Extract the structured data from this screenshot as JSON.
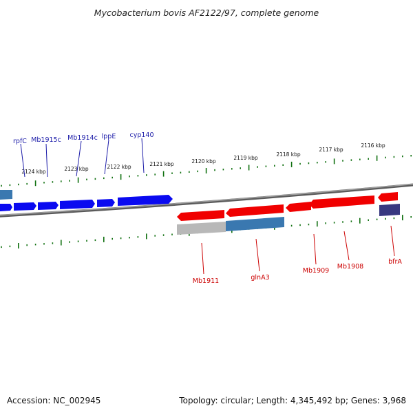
{
  "title": "Mycobacterium bovis AF2122/97, complete genome",
  "footer": {
    "accession": "Accession: NC_002945",
    "topology": "Topology: circular; Length: 4,345,492 bp; Genes: 3,968"
  },
  "ticks": [
    "2124 kbp",
    "2123 kbp",
    "2122 kbp",
    "2121 kbp",
    "2120 kbp",
    "2119 kbp",
    "2118 kbp",
    "2117 kbp",
    "2116 kbp"
  ],
  "top_genes": [
    "rpfC",
    "Mb1915c",
    "Mb1914c",
    "lppE",
    "cyp140"
  ],
  "bottom_genes": [
    "Mb1911",
    "glnA3",
    "Mb1909",
    "Mb1908",
    "bfrA"
  ],
  "colors": {
    "forward_gene": "#0a0af0",
    "reverse_gene": "#f00000",
    "backbone": "#707070",
    "tick_marks": "#107010",
    "cds_blue": "#3a78b0",
    "cds_grey": "#b8b8b8",
    "cds_navy": "#383880"
  }
}
